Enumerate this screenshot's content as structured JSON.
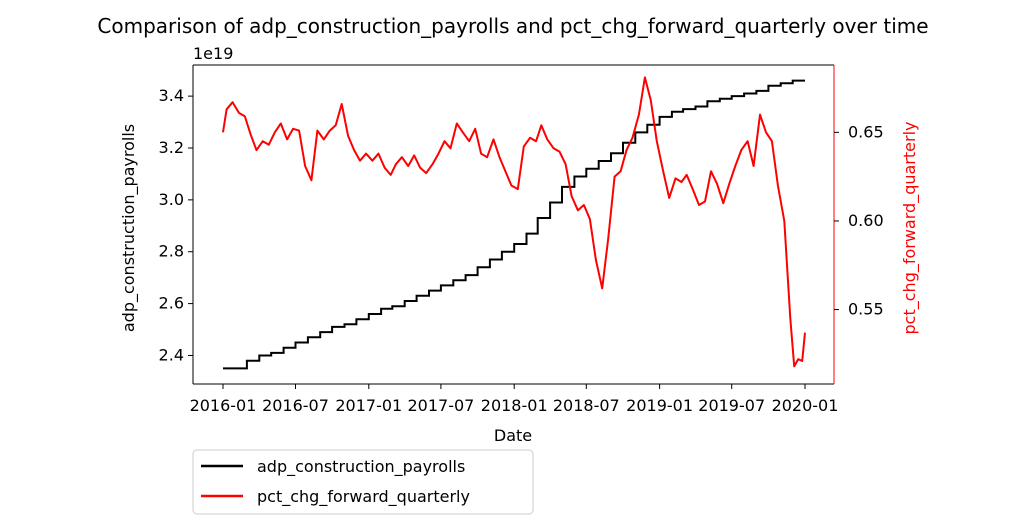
{
  "chart_data": {
    "type": "line",
    "title": "Comparison of adp_construction_payrolls and pct_chg_forward_quarterly over time",
    "xlabel": "Date",
    "y_left": {
      "label": "adp_construction_payrolls",
      "color": "#000000",
      "scale_label": "1e19",
      "lim": [
        2.29,
        3.52
      ],
      "ticks": [
        2.4,
        2.6,
        2.8,
        3.0,
        3.2,
        3.4
      ],
      "tick_labels": [
        "2.4",
        "2.6",
        "2.8",
        "3.0",
        "3.2",
        "3.4"
      ]
    },
    "y_right": {
      "label": "pct_chg_forward_quarterly",
      "color": "#ff0000",
      "lim": [
        0.508,
        0.688
      ],
      "ticks": [
        0.55,
        0.6,
        0.65
      ],
      "tick_labels": [
        "0.55",
        "0.60",
        "0.65"
      ]
    },
    "x_range": [
      "2016-01-01",
      "2020-02-01"
    ],
    "x_ticks": [
      "2016-01",
      "2016-07",
      "2017-01",
      "2017-07",
      "2018-01",
      "2018-07",
      "2019-01",
      "2019-07",
      "2020-01"
    ],
    "legend_position": "below-left",
    "series": [
      {
        "name": "adp_construction_payrolls",
        "axis": "left",
        "color": "#000000",
        "points": [
          [
            "2016-01-01",
            2.35
          ],
          [
            "2016-02-01",
            2.35
          ],
          [
            "2016-03-01",
            2.38
          ],
          [
            "2016-04-01",
            2.4
          ],
          [
            "2016-05-01",
            2.41
          ],
          [
            "2016-06-01",
            2.43
          ],
          [
            "2016-07-01",
            2.45
          ],
          [
            "2016-08-01",
            2.47
          ],
          [
            "2016-09-01",
            2.49
          ],
          [
            "2016-10-01",
            2.51
          ],
          [
            "2016-11-01",
            2.52
          ],
          [
            "2016-12-01",
            2.54
          ],
          [
            "2017-01-01",
            2.56
          ],
          [
            "2017-02-01",
            2.58
          ],
          [
            "2017-03-01",
            2.59
          ],
          [
            "2017-04-01",
            2.61
          ],
          [
            "2017-05-01",
            2.63
          ],
          [
            "2017-06-01",
            2.65
          ],
          [
            "2017-07-01",
            2.67
          ],
          [
            "2017-08-01",
            2.69
          ],
          [
            "2017-09-01",
            2.71
          ],
          [
            "2017-10-01",
            2.74
          ],
          [
            "2017-11-01",
            2.77
          ],
          [
            "2017-12-01",
            2.8
          ],
          [
            "2018-01-01",
            2.83
          ],
          [
            "2018-02-01",
            2.87
          ],
          [
            "2018-03-01",
            2.93
          ],
          [
            "2018-04-01",
            2.99
          ],
          [
            "2018-05-01",
            3.05
          ],
          [
            "2018-06-01",
            3.09
          ],
          [
            "2018-07-01",
            3.12
          ],
          [
            "2018-08-01",
            3.15
          ],
          [
            "2018-09-01",
            3.18
          ],
          [
            "2018-10-01",
            3.22
          ],
          [
            "2018-11-01",
            3.26
          ],
          [
            "2018-12-01",
            3.29
          ],
          [
            "2019-01-01",
            3.32
          ],
          [
            "2019-02-01",
            3.34
          ],
          [
            "2019-03-01",
            3.35
          ],
          [
            "2019-04-01",
            3.36
          ],
          [
            "2019-05-01",
            3.38
          ],
          [
            "2019-06-01",
            3.39
          ],
          [
            "2019-07-01",
            3.4
          ],
          [
            "2019-08-01",
            3.41
          ],
          [
            "2019-09-01",
            3.42
          ],
          [
            "2019-10-01",
            3.44
          ],
          [
            "2019-11-01",
            3.45
          ],
          [
            "2019-12-01",
            3.46
          ],
          [
            "2020-01-01",
            3.46
          ]
        ]
      },
      {
        "name": "pct_chg_forward_quarterly",
        "axis": "right",
        "color": "#ff0000",
        "points": [
          [
            "2016-01-01",
            0.65
          ],
          [
            "2016-01-10",
            0.663
          ],
          [
            "2016-01-25",
            0.667
          ],
          [
            "2016-02-10",
            0.661
          ],
          [
            "2016-02-25",
            0.659
          ],
          [
            "2016-03-10",
            0.649
          ],
          [
            "2016-03-25",
            0.64
          ],
          [
            "2016-04-10",
            0.645
          ],
          [
            "2016-04-25",
            0.643
          ],
          [
            "2016-05-10",
            0.65
          ],
          [
            "2016-05-25",
            0.655
          ],
          [
            "2016-06-10",
            0.646
          ],
          [
            "2016-06-25",
            0.652
          ],
          [
            "2016-07-10",
            0.651
          ],
          [
            "2016-07-25",
            0.631
          ],
          [
            "2016-08-10",
            0.623
          ],
          [
            "2016-08-25",
            0.651
          ],
          [
            "2016-09-10",
            0.646
          ],
          [
            "2016-09-25",
            0.651
          ],
          [
            "2016-10-10",
            0.654
          ],
          [
            "2016-10-25",
            0.666
          ],
          [
            "2016-11-10",
            0.648
          ],
          [
            "2016-11-25",
            0.64
          ],
          [
            "2016-12-10",
            0.634
          ],
          [
            "2016-12-25",
            0.638
          ],
          [
            "2017-01-10",
            0.634
          ],
          [
            "2017-01-25",
            0.638
          ],
          [
            "2017-02-10",
            0.63
          ],
          [
            "2017-02-25",
            0.626
          ],
          [
            "2017-03-10",
            0.632
          ],
          [
            "2017-03-25",
            0.636
          ],
          [
            "2017-04-10",
            0.631
          ],
          [
            "2017-04-25",
            0.637
          ],
          [
            "2017-05-10",
            0.63
          ],
          [
            "2017-05-25",
            0.627
          ],
          [
            "2017-06-10",
            0.632
          ],
          [
            "2017-06-25",
            0.638
          ],
          [
            "2017-07-10",
            0.645
          ],
          [
            "2017-07-25",
            0.641
          ],
          [
            "2017-08-10",
            0.655
          ],
          [
            "2017-08-25",
            0.65
          ],
          [
            "2017-09-10",
            0.645
          ],
          [
            "2017-09-25",
            0.652
          ],
          [
            "2017-10-10",
            0.638
          ],
          [
            "2017-10-25",
            0.636
          ],
          [
            "2017-11-10",
            0.646
          ],
          [
            "2017-11-25",
            0.636
          ],
          [
            "2017-12-10",
            0.628
          ],
          [
            "2017-12-25",
            0.62
          ],
          [
            "2018-01-10",
            0.618
          ],
          [
            "2018-01-25",
            0.642
          ],
          [
            "2018-02-10",
            0.647
          ],
          [
            "2018-02-25",
            0.645
          ],
          [
            "2018-03-10",
            0.654
          ],
          [
            "2018-03-25",
            0.646
          ],
          [
            "2018-04-10",
            0.641
          ],
          [
            "2018-04-25",
            0.639
          ],
          [
            "2018-05-10",
            0.632
          ],
          [
            "2018-05-25",
            0.614
          ],
          [
            "2018-06-10",
            0.606
          ],
          [
            "2018-06-25",
            0.609
          ],
          [
            "2018-07-10",
            0.601
          ],
          [
            "2018-07-25",
            0.578
          ],
          [
            "2018-08-10",
            0.562
          ],
          [
            "2018-08-25",
            0.59
          ],
          [
            "2018-09-10",
            0.625
          ],
          [
            "2018-09-25",
            0.628
          ],
          [
            "2018-10-10",
            0.64
          ],
          [
            "2018-10-25",
            0.647
          ],
          [
            "2018-11-10",
            0.66
          ],
          [
            "2018-11-25",
            0.681
          ],
          [
            "2018-12-10",
            0.668
          ],
          [
            "2018-12-25",
            0.645
          ],
          [
            "2019-01-10",
            0.628
          ],
          [
            "2019-01-25",
            0.613
          ],
          [
            "2019-02-10",
            0.624
          ],
          [
            "2019-02-25",
            0.622
          ],
          [
            "2019-03-10",
            0.626
          ],
          [
            "2019-03-25",
            0.618
          ],
          [
            "2019-04-10",
            0.609
          ],
          [
            "2019-04-25",
            0.611
          ],
          [
            "2019-05-10",
            0.628
          ],
          [
            "2019-05-25",
            0.621
          ],
          [
            "2019-06-10",
            0.61
          ],
          [
            "2019-06-25",
            0.621
          ],
          [
            "2019-07-10",
            0.631
          ],
          [
            "2019-07-25",
            0.64
          ],
          [
            "2019-08-10",
            0.645
          ],
          [
            "2019-08-25",
            0.631
          ],
          [
            "2019-09-10",
            0.66
          ],
          [
            "2019-09-25",
            0.65
          ],
          [
            "2019-10-10",
            0.645
          ],
          [
            "2019-10-25",
            0.62
          ],
          [
            "2019-11-10",
            0.6
          ],
          [
            "2019-11-25",
            0.545
          ],
          [
            "2019-12-05",
            0.518
          ],
          [
            "2019-12-15",
            0.522
          ],
          [
            "2019-12-25",
            0.521
          ],
          [
            "2020-01-01",
            0.537
          ]
        ]
      }
    ]
  }
}
